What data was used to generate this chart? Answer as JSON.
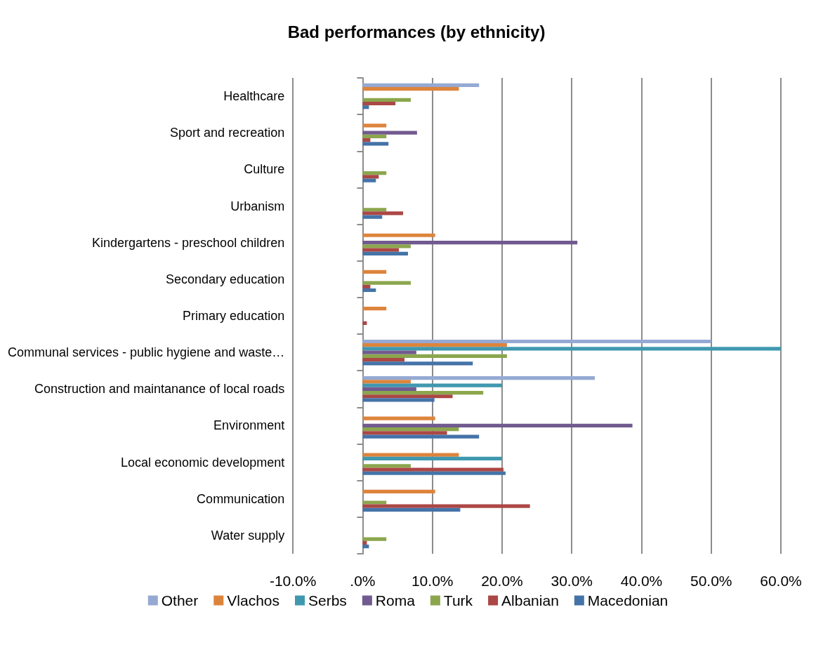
{
  "chart_data": {
    "type": "bar",
    "orientation": "horizontal",
    "title": "Bad performances (by ethnicity)",
    "categories": [
      "Healthcare",
      "Sport and recreation",
      "Culture",
      "Urbanism",
      "Kindergartens - preschool children",
      "Secondary education",
      "Primary education",
      "Communal services - public hygiene and waste…",
      "Construction and maintanance of local roads",
      "Environment",
      "Local economic development",
      "Communication",
      "Water supply"
    ],
    "series": [
      {
        "name": "Other",
        "color": "#95a9d3",
        "values": [
          16.7,
          null,
          null,
          null,
          null,
          null,
          null,
          50.0,
          33.3,
          null,
          null,
          null,
          null
        ]
      },
      {
        "name": "Vlachos",
        "color": "#dd843c",
        "values": [
          13.8,
          3.4,
          null,
          null,
          10.4,
          3.4,
          3.4,
          20.7,
          6.9,
          10.4,
          13.8,
          10.4,
          null
        ]
      },
      {
        "name": "Serbs",
        "color": "#3f98af",
        "values": [
          null,
          null,
          null,
          null,
          null,
          null,
          null,
          60.0,
          20.0,
          null,
          20.0,
          null,
          null
        ]
      },
      {
        "name": "Roma",
        "color": "#715a8f",
        "values": [
          null,
          7.8,
          null,
          null,
          30.8,
          null,
          null,
          7.7,
          7.7,
          38.7,
          null,
          null,
          null
        ]
      },
      {
        "name": "Turk",
        "color": "#8ba64d",
        "values": [
          6.9,
          3.4,
          3.4,
          3.4,
          6.9,
          6.9,
          null,
          20.7,
          17.3,
          13.8,
          6.9,
          3.4,
          3.4
        ]
      },
      {
        "name": "Albanian",
        "color": "#ab4745",
        "values": [
          4.7,
          1.1,
          2.3,
          5.8,
          5.2,
          1.1,
          0.6,
          6.0,
          12.9,
          12.1,
          20.2,
          24.0,
          0.6
        ]
      },
      {
        "name": "Macedonian",
        "color": "#4473a8",
        "values": [
          0.9,
          3.7,
          1.9,
          2.8,
          6.5,
          1.9,
          null,
          15.8,
          10.3,
          16.7,
          20.5,
          14.0,
          0.9
        ]
      }
    ],
    "xlim": [
      -10,
      60
    ],
    "xticks": [
      {
        "value": -10,
        "label": "-10.0%"
      },
      {
        "value": 0,
        "label": ".0%"
      },
      {
        "value": 10,
        "label": "10.0%"
      },
      {
        "value": 20,
        "label": "20.0%"
      },
      {
        "value": 30,
        "label": "30.0%"
      },
      {
        "value": 40,
        "label": "40.0%"
      },
      {
        "value": 50,
        "label": "50.0%"
      },
      {
        "value": 60,
        "label": "60.0%"
      }
    ],
    "grid": "x",
    "legend": "bottom"
  }
}
